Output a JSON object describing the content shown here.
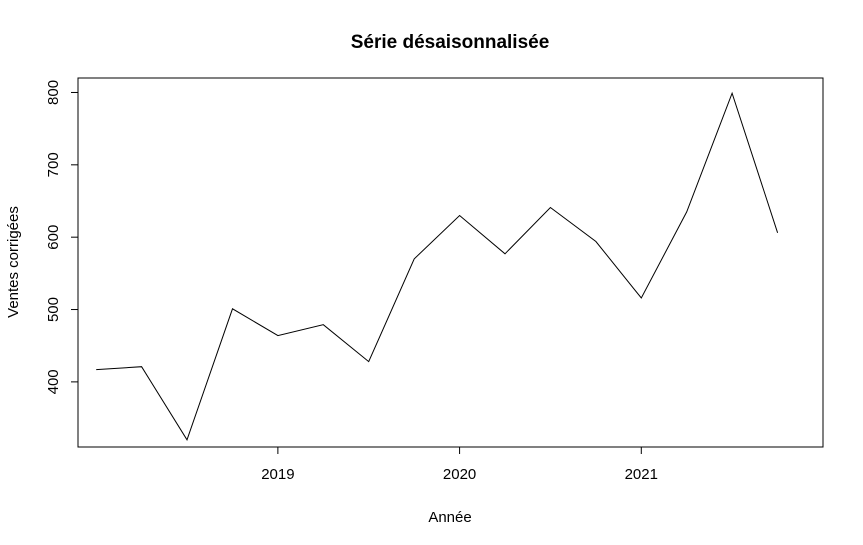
{
  "chart_data": {
    "type": "line",
    "title": "Série désaisonnalisée",
    "xlabel": "Année",
    "ylabel": "Ventes corrigées",
    "x_ticks": [
      2019,
      2020,
      2021
    ],
    "y_ticks": [
      400,
      500,
      600,
      700,
      800
    ],
    "xlim": [
      2017.9,
      2022.0
    ],
    "ylim": [
      310,
      820
    ],
    "grid": false,
    "legend": "none",
    "series": [
      {
        "x": [
          2018.0,
          2018.25,
          2018.5,
          2018.75,
          2019.0,
          2019.25,
          2019.5,
          2019.75,
          2020.0,
          2020.25,
          2020.5,
          2020.75,
          2021.0,
          2021.25,
          2021.5,
          2021.75
        ],
        "values": [
          417,
          421,
          320,
          501,
          464,
          479,
          428,
          570,
          630,
          577,
          641,
          594,
          516,
          635,
          799,
          606
        ],
        "color": "#000000"
      }
    ]
  }
}
